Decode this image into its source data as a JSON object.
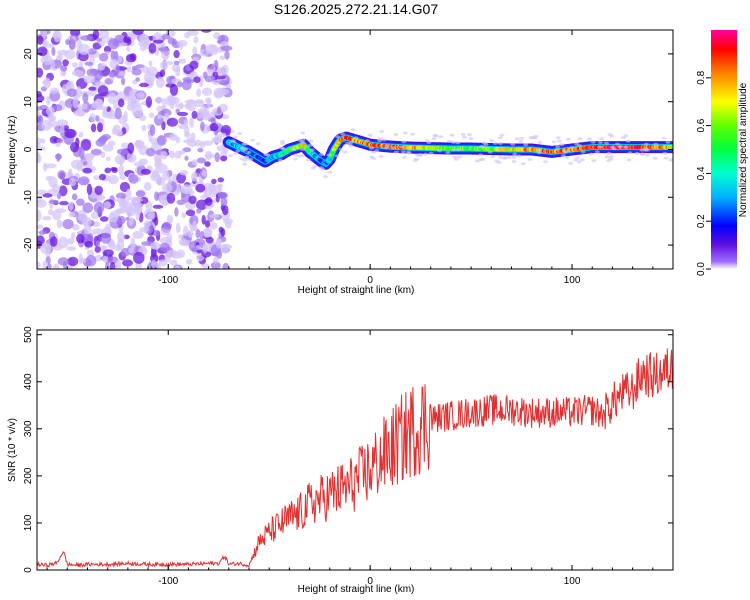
{
  "title": "S126.2025.272.21.14.G07",
  "chart_data": [
    {
      "type": "heatmap",
      "xlabel": "Height of straight line (km)",
      "ylabel": "Frequency (Hz)",
      "xlim": [
        -165,
        150
      ],
      "ylim": [
        -25,
        25
      ],
      "x_ticks": [
        -100,
        0,
        100
      ],
      "y_ticks": [
        -20,
        -10,
        0,
        10,
        20
      ],
      "noise_region_x": [
        -165,
        -70
      ],
      "ridge": {
        "x": [
          -70,
          -65,
          -60,
          -56,
          -52,
          -48,
          -44,
          -40,
          -36,
          -33,
          -30,
          -27,
          -24,
          -22,
          -20,
          -18,
          -15,
          -12,
          -8,
          -4,
          0,
          5,
          10,
          20,
          30,
          40,
          50,
          60,
          70,
          80,
          90,
          100,
          110,
          120,
          130,
          140,
          150
        ],
        "freq": [
          1.5,
          0.5,
          -0.5,
          -1.5,
          -2.5,
          -1.5,
          -1.0,
          0.0,
          0.5,
          1.0,
          -0.5,
          -1.5,
          -2.5,
          -3.0,
          -2.0,
          0.0,
          2.0,
          2.5,
          2.0,
          1.5,
          1.0,
          0.8,
          0.6,
          0.4,
          0.3,
          0.2,
          0.2,
          0.1,
          0.0,
          0.0,
          -0.5,
          0.0,
          0.5,
          0.5,
          0.5,
          0.5,
          0.5
        ],
        "amplitude": [
          0.3,
          0.3,
          0.25,
          0.2,
          0.15,
          0.35,
          0.4,
          0.5,
          0.6,
          0.7,
          0.5,
          0.3,
          0.25,
          0.2,
          0.4,
          0.6,
          0.8,
          0.9,
          0.8,
          0.8,
          0.85,
          0.85,
          0.85,
          0.8,
          0.6,
          0.55,
          0.55,
          0.6,
          0.7,
          0.8,
          0.85,
          0.8,
          0.85,
          0.9,
          0.9,
          0.85,
          0.7
        ]
      },
      "colorbar": {
        "label": "Normalized spectral amplitude",
        "range": [
          0.0,
          1.0
        ],
        "ticks": [
          "0.0",
          "0.2",
          "0.4",
          "0.6",
          "0.8"
        ]
      }
    },
    {
      "type": "line",
      "xlabel": "Height of straight line (km)",
      "ylabel": "SNR (10 * v/v)",
      "xlim": [
        -165,
        150
      ],
      "ylim": [
        0,
        510
      ],
      "x_ticks": [
        -100,
        0,
        100
      ],
      "y_ticks": [
        0,
        100,
        200,
        300,
        400,
        500
      ],
      "series": [
        {
          "name": "SNR",
          "color": "#e03030",
          "x": [
            -165,
            -160,
            -155,
            -152,
            -150,
            -145,
            -140,
            -130,
            -120,
            -110,
            -100,
            -90,
            -80,
            -75,
            -72,
            -70,
            -65,
            -60,
            -55,
            -50,
            -45,
            -40,
            -35,
            -30,
            -25,
            -20,
            -15,
            -10,
            -5,
            0,
            5,
            10,
            15,
            20,
            25,
            30,
            35,
            40,
            50,
            60,
            70,
            80,
            90,
            100,
            110,
            115,
            120,
            125,
            130,
            135,
            140,
            145,
            150
          ],
          "y": [
            12,
            10,
            15,
            40,
            12,
            10,
            12,
            12,
            14,
            12,
            12,
            12,
            14,
            14,
            30,
            12,
            14,
            10,
            60,
            80,
            95,
            110,
            120,
            140,
            150,
            160,
            170,
            180,
            195,
            215,
            235,
            255,
            275,
            295,
            310,
            320,
            325,
            328,
            335,
            340,
            340,
            335,
            335,
            335,
            340,
            330,
            355,
            375,
            380,
            420,
            410,
            420,
            430
          ]
        }
      ]
    }
  ]
}
